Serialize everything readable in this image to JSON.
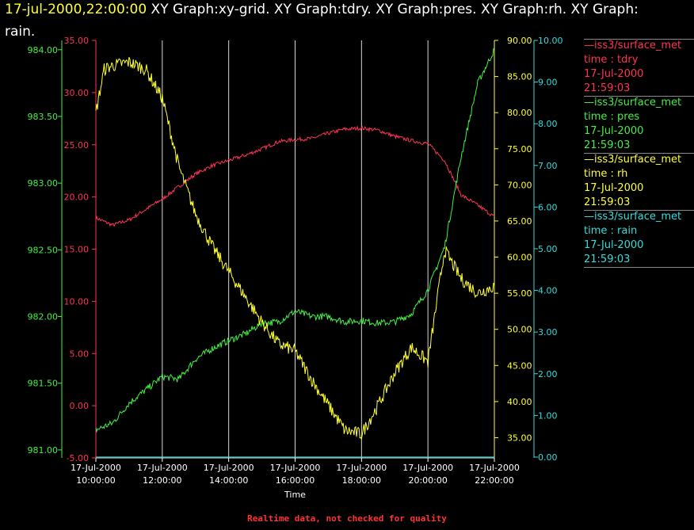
{
  "header": {
    "timestamp": "17-jul-2000,22:00:00",
    "line1_rest": "  XY Graph:xy-grid.  XY Graph:tdry.  XY Graph:pres.  XY Graph:rh.  XY Graph:",
    "line2": "rain."
  },
  "footer": "Realtime data, not checked for quality",
  "colors": {
    "tdry": "#ff3355",
    "pres": "#44ee44",
    "rh": "#ffff33",
    "rain": "#33dddd",
    "grid": "#d8d8d8",
    "text": "#ffffff"
  },
  "legend": [
    {
      "series": "tdry",
      "name": "—iss3/surface_met",
      "field": "time : tdry",
      "date": "17-Jul-2000",
      "time": "21:59:03"
    },
    {
      "series": "pres",
      "name": "—iss3/surface_met",
      "field": "time : pres",
      "date": "17-Jul-2000",
      "time": "21:59:03"
    },
    {
      "series": "rh",
      "name": "—iss3/surface_met",
      "field": "time : rh",
      "date": "17-Jul-2000",
      "time": "21:59:03"
    },
    {
      "series": "rain",
      "name": "—iss3/surface_met",
      "field": "time : rain",
      "date": "17-Jul-2000",
      "time": "21:59:03"
    }
  ],
  "chart_data": {
    "type": "line",
    "xlabel": "Time",
    "x_range": [
      "2000-07-17 10:00:00",
      "2000-07-17 22:00:00"
    ],
    "x_ticks": [
      {
        "date": "17-Jul-2000",
        "time": "10:00:00"
      },
      {
        "date": "17-Jul-2000",
        "time": "12:00:00"
      },
      {
        "date": "17-Jul-2000",
        "time": "14:00:00"
      },
      {
        "date": "17-Jul-2000",
        "time": "16:00:00"
      },
      {
        "date": "17-Jul-2000",
        "time": "18:00:00"
      },
      {
        "date": "17-Jul-2000",
        "time": "20:00:00"
      },
      {
        "date": "17-Jul-2000",
        "time": "22:00:00"
      }
    ],
    "grid": true,
    "axes": [
      {
        "id": "tdry",
        "side": "left",
        "range": [
          -5,
          35
        ],
        "ticks": [
          "-5.00",
          "0.00",
          "5.00",
          "10.00",
          "15.00",
          "20.00",
          "25.00",
          "30.00",
          "35.00"
        ]
      },
      {
        "id": "pres",
        "side": "left",
        "range": [
          980.94,
          984.07
        ],
        "ticks": [
          "981.00",
          "981.50",
          "982.00",
          "982.50",
          "983.00",
          "983.50",
          "984.00"
        ]
      },
      {
        "id": "rh",
        "side": "right",
        "range": [
          32.2,
          90.0
        ],
        "ticks": [
          "35.00",
          "40.00",
          "45.00",
          "50.00",
          "55.00",
          "60.00",
          "65.00",
          "70.00",
          "75.00",
          "80.00",
          "85.00",
          "90.00"
        ]
      },
      {
        "id": "rain",
        "side": "right",
        "range": [
          -0.02,
          10.0
        ],
        "ticks": [
          "0.00",
          "1.00",
          "2.00",
          "3.00",
          "4.00",
          "5.00",
          "6.00",
          "7.00",
          "8.00",
          "9.00",
          "10.00"
        ]
      }
    ],
    "series": [
      {
        "id": "tdry",
        "axis": "tdry",
        "time": [
          "10:00",
          "10:30",
          "11:00",
          "11:30",
          "12:00",
          "12:30",
          "13:00",
          "13:30",
          "14:00",
          "14:30",
          "15:00",
          "15:30",
          "16:00",
          "16:30",
          "17:00",
          "17:30",
          "18:00",
          "18:30",
          "19:00",
          "19:30",
          "20:00",
          "20:30",
          "21:00",
          "21:30",
          "22:00"
        ],
        "values": [
          18.0,
          17.3,
          17.8,
          18.8,
          19.8,
          21.0,
          22.2,
          23.0,
          23.5,
          24.0,
          24.6,
          25.3,
          25.5,
          25.6,
          26.1,
          26.5,
          26.6,
          26.4,
          25.8,
          25.4,
          25.1,
          23.5,
          20.2,
          19.2,
          18.1
        ]
      },
      {
        "id": "pres",
        "axis": "pres",
        "time": [
          "10:00",
          "10:30",
          "11:00",
          "11:30",
          "12:00",
          "12:30",
          "13:00",
          "13:30",
          "14:00",
          "14:30",
          "15:00",
          "15:30",
          "16:00",
          "16:30",
          "17:00",
          "17:30",
          "18:00",
          "18:30",
          "19:00",
          "19:30",
          "20:00",
          "20:30",
          "21:00",
          "21:30",
          "22:00"
        ],
        "values": [
          981.15,
          981.2,
          981.35,
          981.45,
          981.55,
          981.53,
          981.68,
          981.76,
          981.82,
          981.87,
          981.95,
          981.96,
          982.04,
          982.0,
          982.0,
          981.96,
          981.97,
          981.95,
          981.96,
          982.02,
          982.2,
          982.52,
          983.2,
          983.75,
          984.0
        ]
      },
      {
        "id": "rh",
        "axis": "rh",
        "time": [
          "10:00",
          "10:15",
          "10:30",
          "11:00",
          "11:30",
          "12:00",
          "12:30",
          "13:00",
          "13:30",
          "14:00",
          "14:30",
          "15:00",
          "15:30",
          "16:00",
          "16:30",
          "17:00",
          "17:30",
          "18:00",
          "18:30",
          "19:00",
          "19:30",
          "20:00",
          "20:30",
          "21:00",
          "21:30",
          "22:00"
        ],
        "values": [
          80.0,
          86.0,
          86.5,
          87.0,
          86.0,
          82.0,
          72.5,
          66.0,
          61.5,
          58.0,
          54.5,
          51.0,
          48.0,
          47.0,
          43.0,
          39.5,
          36.0,
          35.5,
          39.5,
          44.0,
          47.5,
          45.5,
          61.0,
          57.0,
          55.0,
          56.0
        ]
      },
      {
        "id": "rain",
        "axis": "rain",
        "time": [
          "10:00",
          "22:00"
        ],
        "values": [
          0.0,
          0.0
        ]
      }
    ]
  }
}
